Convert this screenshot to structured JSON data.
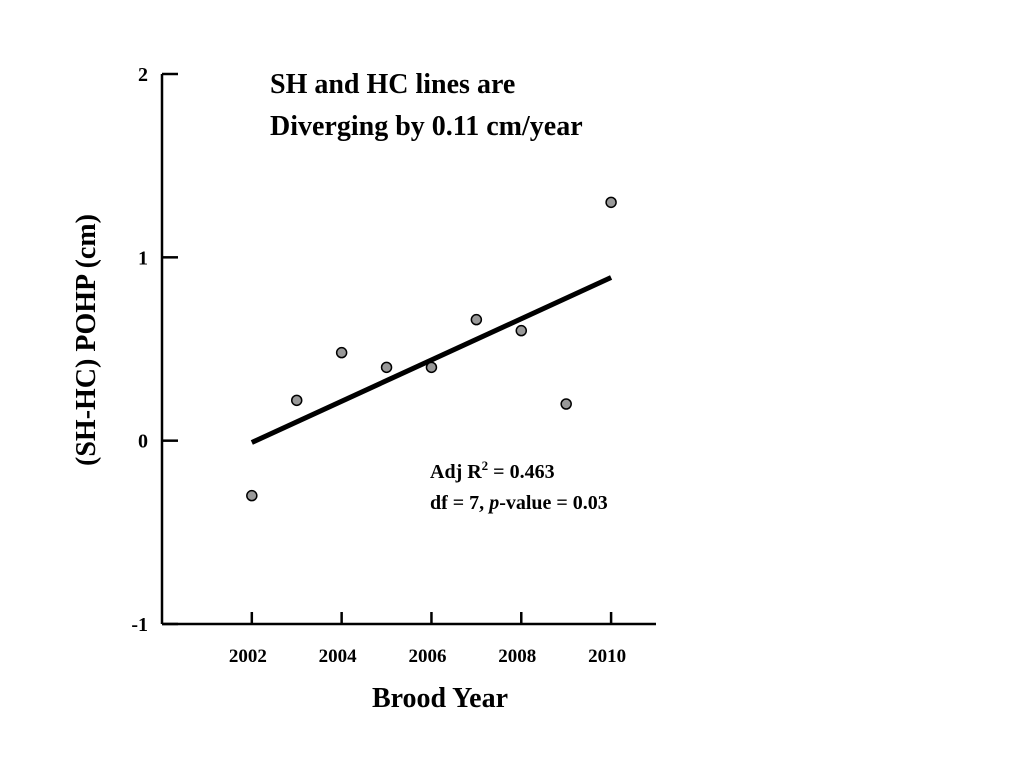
{
  "chart_data": {
    "type": "scatter",
    "title": "",
    "xlabel": "Brood Year",
    "ylabel": "(SH-HC) POHP (cm)",
    "xlim": [
      2000,
      2011
    ],
    "ylim": [
      -1,
      2
    ],
    "x_ticks": [
      2002,
      2004,
      2006,
      2008,
      2010
    ],
    "x_tick_labels": [
      "2002",
      "2004",
      "2006",
      "2008",
      "2010"
    ],
    "y_ticks": [
      -1,
      0,
      1,
      2
    ],
    "y_tick_labels": [
      "-1",
      "0",
      "1",
      "2"
    ],
    "grid": false,
    "series": [
      {
        "points": [
          {
            "x": 2002,
            "y": -0.3
          },
          {
            "x": 2003,
            "y": 0.22
          },
          {
            "x": 2004,
            "y": 0.48
          },
          {
            "x": 2005,
            "y": 0.4
          },
          {
            "x": 2006,
            "y": 0.4
          },
          {
            "x": 2007,
            "y": 0.66
          },
          {
            "x": 2008,
            "y": 0.6
          },
          {
            "x": 2009,
            "y": 0.2
          },
          {
            "x": 2010,
            "y": 1.3
          }
        ],
        "marker_fill": "#999999",
        "marker_stroke": "#000000"
      }
    ],
    "trend_line": {
      "start": {
        "x": 2002,
        "y": -0.01
      },
      "end": {
        "x": 2010,
        "y": 0.89
      },
      "color": "#000000"
    },
    "annotations": {
      "headline_line1": "SH and HC lines are",
      "headline_line2": "Diverging by 0.11 cm/year",
      "adj_prefix": "Adj R",
      "adj_sup": "2",
      "adj_value": " = 0.463",
      "df_prefix": "df = 7, ",
      "p_italic": "p",
      "p_suffix": "-value = 0.03"
    }
  }
}
